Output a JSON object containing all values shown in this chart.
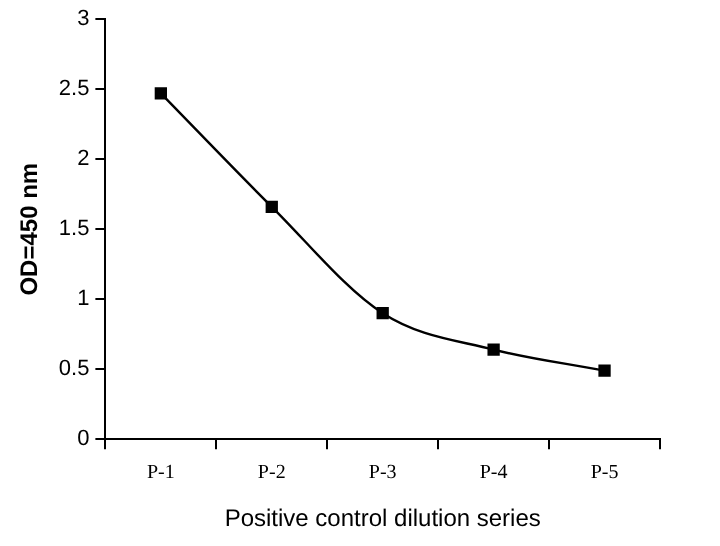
{
  "chart_data": {
    "type": "line",
    "xlabel": "Positive control dilution series",
    "ylabel": "OD=450 nm",
    "categories": [
      "P-1",
      "P-2",
      "P-3",
      "P-4",
      "P-5"
    ],
    "series": [
      {
        "color": "#000000",
        "values": [
          2.47,
          1.66,
          0.9,
          0.64,
          0.49
        ]
      }
    ],
    "ylim": [
      0,
      3
    ],
    "yticks": [
      0,
      0.5,
      1,
      1.5,
      2,
      2.5,
      3
    ],
    "grid": false,
    "legend": false,
    "marker": "square",
    "line_style": "solid"
  }
}
